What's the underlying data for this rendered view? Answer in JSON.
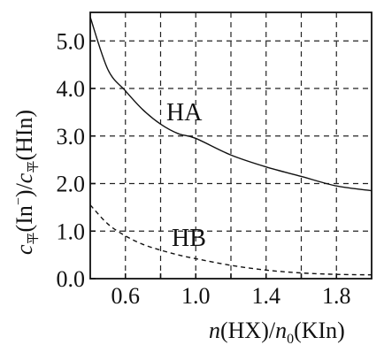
{
  "chart_data": {
    "type": "line",
    "xlabel_parts": {
      "n1": "n",
      "x1": "(HX)/",
      "n2": "n",
      "sub": "0",
      "x2": "(KIn)"
    },
    "ylabel_parts": {
      "c1": "c",
      "sub1": "平",
      "y1": "(In",
      "sup": "−",
      "y2": ")/",
      "c2": "c",
      "sub2": "平",
      "y3": "(HIn)"
    },
    "xlim": [
      0.4,
      2.0
    ],
    "ylim": [
      0,
      5.6
    ],
    "x_ticks": [
      0.6,
      1.0,
      1.4,
      1.8
    ],
    "x_tick_labels": [
      "0.6",
      "1.0",
      "1.4",
      "1.8"
    ],
    "x_grid": [
      0.6,
      0.8,
      1.0,
      1.2,
      1.4,
      1.6,
      1.8
    ],
    "y_ticks": [
      0,
      1,
      2,
      3,
      4,
      5
    ],
    "y_tick_labels": [
      "0.0",
      "1.0",
      "2.0",
      "3.0",
      "4.0",
      "5.0"
    ],
    "grid": true,
    "series": [
      {
        "name": "HA",
        "style": "solid",
        "x": [
          0.4,
          0.5,
          0.6,
          0.7,
          0.8,
          0.9,
          1.0,
          1.2,
          1.4,
          1.6,
          1.8,
          2.0
        ],
        "y": [
          5.5,
          4.4,
          3.95,
          3.55,
          3.25,
          3.05,
          2.95,
          2.6,
          2.35,
          2.15,
          1.95,
          1.85
        ]
      },
      {
        "name": "HB",
        "style": "dashed",
        "x": [
          0.4,
          0.5,
          0.6,
          0.7,
          0.8,
          0.9,
          1.0,
          1.2,
          1.4,
          1.6,
          1.8,
          2.0
        ],
        "y": [
          1.55,
          1.15,
          0.9,
          0.72,
          0.6,
          0.5,
          0.42,
          0.28,
          0.18,
          0.12,
          0.09,
          0.08
        ]
      }
    ]
  }
}
